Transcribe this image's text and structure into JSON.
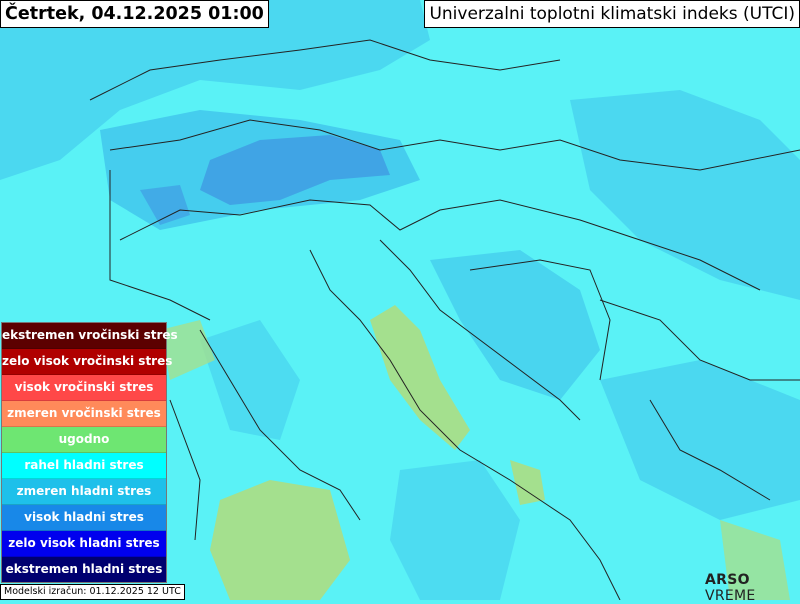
{
  "header": {
    "date_title": "Četrtek, 04.12.2025 01:00",
    "map_title": "Univerzalni toplotni klimatski indeks (UTCI)"
  },
  "legend": {
    "items": [
      {
        "label": "ekstremen vročinski stres",
        "color": "#5c0000"
      },
      {
        "label": "zelo visok vročinski stres",
        "color": "#b00000"
      },
      {
        "label": "visok vročinski stres",
        "color": "#ff4848"
      },
      {
        "label": "zmeren vročinski stres",
        "color": "#ff8a5a"
      },
      {
        "label": "ugodno",
        "color": "#6ee672"
      },
      {
        "label": "rahel hladni stres",
        "color": "#00ffff"
      },
      {
        "label": "zmeren hladni stres",
        "color": "#1ec0ea"
      },
      {
        "label": "visok hladni stres",
        "color": "#1888e8"
      },
      {
        "label": "zelo visok hladni stres",
        "color": "#0000ee"
      },
      {
        "label": "ekstremen hladni stres",
        "color": "#000070"
      }
    ]
  },
  "footer": {
    "model_run": "Modelski izračun: 01.12.2025 12 UTC",
    "logo_bold": "ARSO",
    "logo_light": " VREME"
  }
}
